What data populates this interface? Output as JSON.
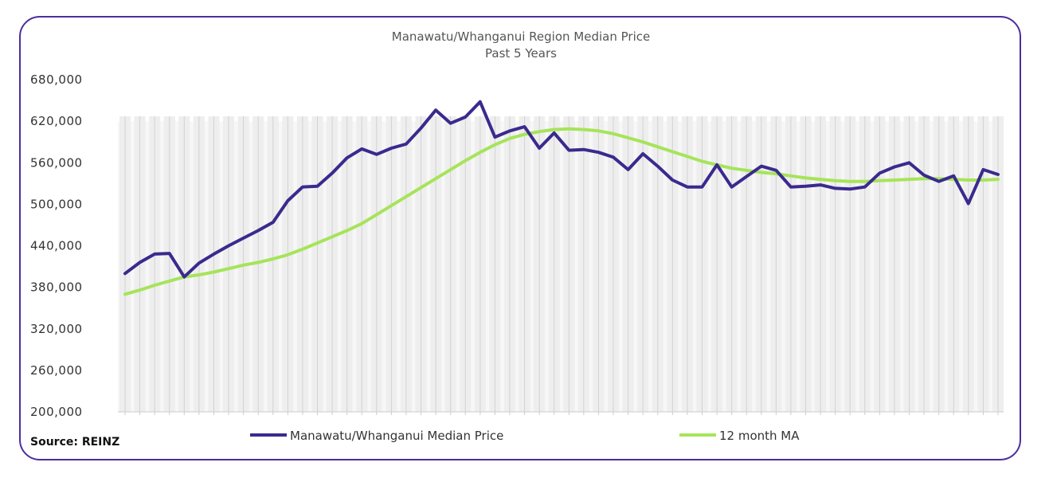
{
  "chart_data": {
    "type": "line",
    "title": "Manawatu/Whanganui Region Median Price",
    "subtitle": "Past 5 Years",
    "source": "Source: REINZ",
    "ylim": [
      200000,
      680000
    ],
    "yticks": [
      "680,000",
      "620,000",
      "560,000",
      "500,000",
      "440,000",
      "380,000",
      "320,000",
      "260,000",
      "200,000"
    ],
    "ytick_values": [
      680000,
      620000,
      560000,
      500000,
      440000,
      380000,
      320000,
      260000,
      200000
    ],
    "legend_position": "bottom",
    "series": [
      {
        "name": "Manawatu/Whanganui Median Price",
        "color": "#3a2a8e",
        "values": [
          400000,
          416000,
          428000,
          429000,
          395000,
          415000,
          428000,
          440000,
          451000,
          462000,
          474000,
          505000,
          525000,
          526000,
          545000,
          567000,
          580000,
          572000,
          581000,
          587000,
          610000,
          636000,
          617000,
          626000,
          648000,
          597000,
          606000,
          612000,
          581000,
          603000,
          578000,
          579000,
          575000,
          568000,
          550000,
          573000,
          555000,
          535000,
          525000,
          525000,
          557000,
          525000,
          540000,
          555000,
          549000,
          525000,
          526000,
          528000,
          523000,
          522000,
          525000,
          545000,
          554000,
          560000,
          542000,
          533000,
          541000,
          501000,
          550000,
          543000
        ]
      },
      {
        "name": "12 month MA",
        "color": "#a6e45a",
        "values": [
          370000,
          376000,
          383000,
          389000,
          395000,
          398000,
          402000,
          407000,
          412000,
          416000,
          421000,
          427000,
          435000,
          444000,
          453000,
          462000,
          472000,
          485000,
          498000,
          511000,
          524000,
          537000,
          550000,
          563000,
          575000,
          586000,
          595000,
          601000,
          605000,
          608000,
          609000,
          608000,
          606000,
          602000,
          596000,
          590000,
          583000,
          576000,
          569000,
          562000,
          557000,
          552000,
          549000,
          546000,
          544000,
          541000,
          538000,
          536000,
          534000,
          533000,
          533000,
          534000,
          535000,
          536000,
          537000,
          537000,
          536000,
          535000,
          535000,
          536000
        ]
      }
    ]
  }
}
